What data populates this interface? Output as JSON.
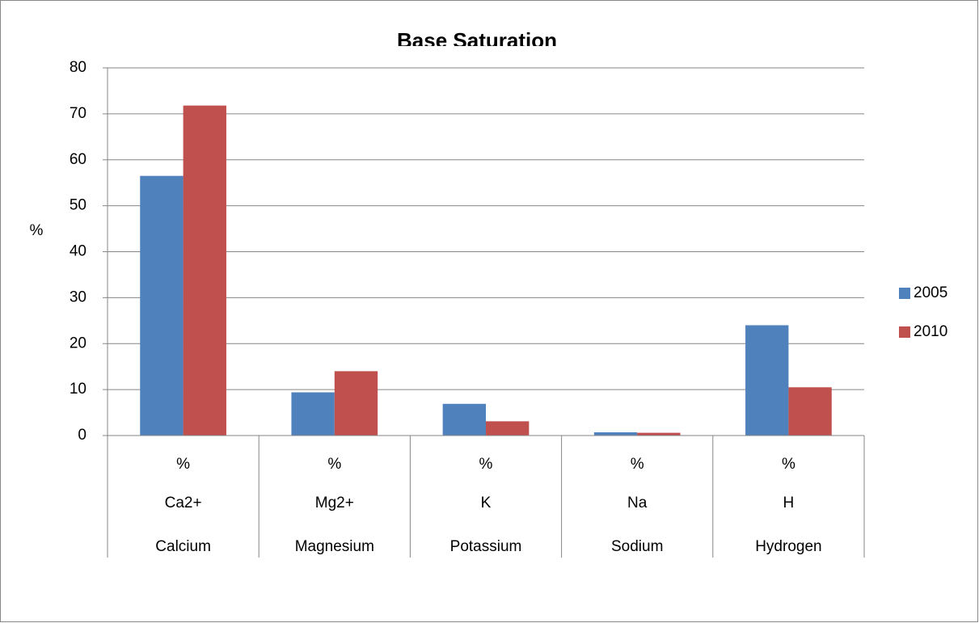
{
  "chart_data": {
    "type": "bar",
    "title": "Base Saturation",
    "y_label": "%",
    "categories": [
      [
        "%",
        "Ca2+",
        "Calcium"
      ],
      [
        "%",
        "Mg2+",
        "Magnesium"
      ],
      [
        "%",
        "K",
        "Potassium"
      ],
      [
        "%",
        "Na",
        "Sodium"
      ],
      [
        "%",
        "H",
        "Hydrogen"
      ]
    ],
    "series": [
      {
        "name": "2005",
        "color": "#4f81bd",
        "values": [
          56.5,
          9.4,
          6.9,
          0.7,
          24.0
        ]
      },
      {
        "name": "2010",
        "color": "#c0504d",
        "values": [
          71.8,
          14.0,
          3.1,
          0.6,
          10.5
        ]
      }
    ],
    "ylim": [
      0,
      80
    ],
    "yticks": [
      0,
      10,
      20,
      30,
      40,
      50,
      60,
      70,
      80
    ],
    "grid": true,
    "legend": "right"
  }
}
